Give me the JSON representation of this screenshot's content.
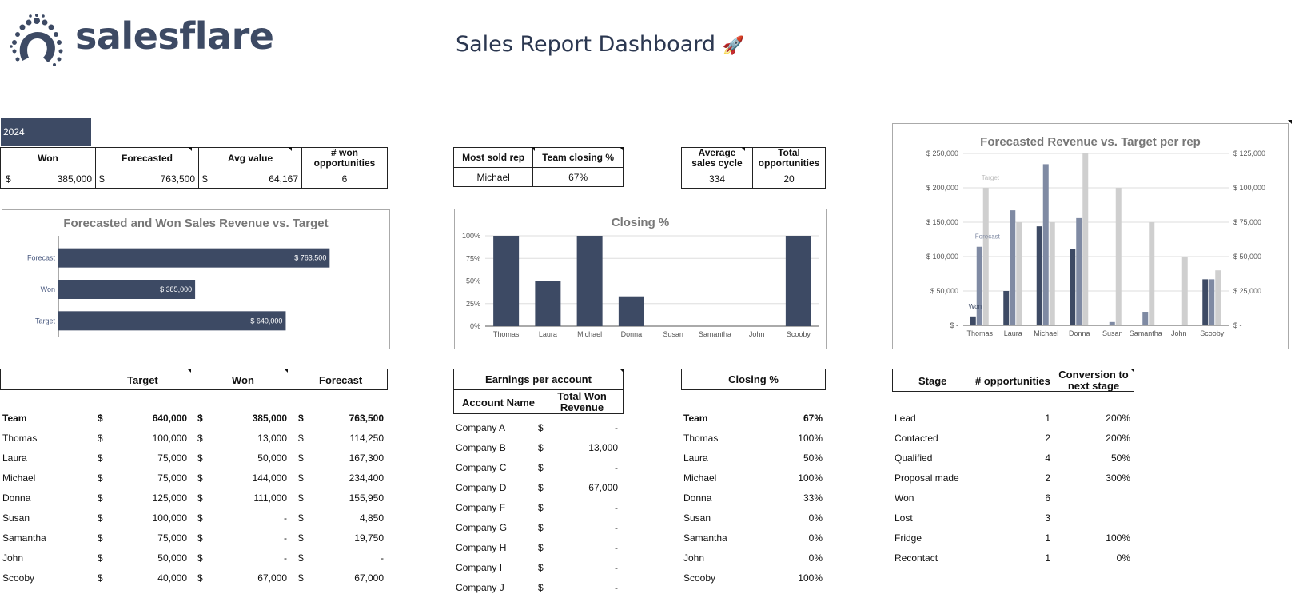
{
  "brand": {
    "name": "salesflare"
  },
  "page": {
    "title": "Sales Report Dashboard",
    "title_emoji": "🚀"
  },
  "year_label": "2024",
  "kpi_main": {
    "headers": [
      "Won",
      "Forecasted",
      "Avg value",
      "# won opportunities"
    ],
    "currency": "$",
    "values": [
      "385,000",
      "763,500",
      "64,167",
      "6"
    ]
  },
  "kpi_rep": {
    "headers": [
      "Most sold rep",
      "Team closing %"
    ],
    "values": [
      "Michael",
      "67%"
    ]
  },
  "kpi_cycle": {
    "headers": [
      "Average sales cycle",
      "Total opportunities"
    ],
    "values": [
      "334",
      "20"
    ]
  },
  "chart_data": [
    {
      "type": "bar",
      "orientation": "horizontal",
      "title": "Forecasted and Won Sales Revenue vs. Target",
      "categories": [
        "Forecast",
        "Won",
        "Target"
      ],
      "values": [
        763500,
        385000,
        640000
      ],
      "data_labels": [
        "$ 763,500",
        "$ 385,000",
        "$ 640,000"
      ],
      "xlim": [
        0,
        900000
      ],
      "color": "#3d4a64"
    },
    {
      "type": "bar",
      "title": "Closing %",
      "categories": [
        "Thomas",
        "Laura",
        "Michael",
        "Donna",
        "Susan",
        "Samantha",
        "John",
        "Scooby"
      ],
      "values": [
        100,
        50,
        100,
        33,
        0,
        0,
        0,
        100
      ],
      "ylim": [
        0,
        100
      ],
      "yticks": [
        "0%",
        "25%",
        "50%",
        "75%",
        "100%"
      ],
      "color": "#3d4a64",
      "grid": true
    },
    {
      "type": "bar",
      "title": "Forecasted Revenue vs. Target per rep",
      "categories": [
        "Thomas",
        "Laura",
        "Michael",
        "Donna",
        "Susan",
        "Samantha",
        "John",
        "Scooby"
      ],
      "series": [
        {
          "name": "Won",
          "values": [
            13000,
            50000,
            144000,
            111000,
            0,
            0,
            0,
            67000
          ],
          "color": "#3d4a64"
        },
        {
          "name": "Forecast",
          "values": [
            114250,
            167300,
            234400,
            155950,
            4850,
            19750,
            0,
            67000
          ],
          "color": "#7f8aa3"
        },
        {
          "name": "Target",
          "values": [
            100000,
            75000,
            75000,
            125000,
            100000,
            75000,
            50000,
            40000
          ],
          "color": "#cfcfcf",
          "axis": "right"
        }
      ],
      "ylim_left": [
        0,
        250000
      ],
      "ylim_right": [
        0,
        125000
      ],
      "yticks_left": [
        "$ -",
        "$ 50,000",
        "$ 100,000",
        "$ 150,000",
        "$ 200,000",
        "$ 250,000"
      ],
      "yticks_right": [
        "$ -",
        "$ 25,000",
        "$ 50,000",
        "$ 75,000",
        "$ 100,000",
        "$ 125,000"
      ]
    }
  ],
  "rep_table": {
    "headers": [
      "Target",
      "Won",
      "Forecast"
    ],
    "currency": "$",
    "rows": [
      {
        "name": "Team",
        "target": "640,000",
        "won": "385,000",
        "forecast": "763,500",
        "bold": true
      },
      {
        "name": "Thomas",
        "target": "100,000",
        "won": "13,000",
        "forecast": "114,250"
      },
      {
        "name": "Laura",
        "target": "75,000",
        "won": "50,000",
        "forecast": "167,300"
      },
      {
        "name": "Michael",
        "target": "75,000",
        "won": "144,000",
        "forecast": "234,400"
      },
      {
        "name": "Donna",
        "target": "125,000",
        "won": "111,000",
        "forecast": "155,950"
      },
      {
        "name": "Susan",
        "target": "100,000",
        "won": "-",
        "forecast": "4,850"
      },
      {
        "name": "Samantha",
        "target": "75,000",
        "won": "-",
        "forecast": "19,750"
      },
      {
        "name": "John",
        "target": "50,000",
        "won": "-",
        "forecast": "-"
      },
      {
        "name": "Scooby",
        "target": "40,000",
        "won": "67,000",
        "forecast": "67,000"
      }
    ]
  },
  "earnings_table": {
    "title": "Earnings per account",
    "headers": [
      "Account Name",
      "Total Won Revenue"
    ],
    "currency": "$",
    "rows": [
      {
        "name": "Company A",
        "value": "-"
      },
      {
        "name": "Company B",
        "value": "13,000"
      },
      {
        "name": "Company C",
        "value": "-"
      },
      {
        "name": "Company D",
        "value": "67,000"
      },
      {
        "name": "Company F",
        "value": "-"
      },
      {
        "name": "Company G",
        "value": "-"
      },
      {
        "name": "Company H",
        "value": "-"
      },
      {
        "name": "Company I",
        "value": "-"
      },
      {
        "name": "Company J",
        "value": "-"
      }
    ]
  },
  "closing_table": {
    "title": "Closing %",
    "rows": [
      {
        "name": "Team",
        "value": "67%",
        "bold": true
      },
      {
        "name": "Thomas",
        "value": "100%"
      },
      {
        "name": "Laura",
        "value": "50%"
      },
      {
        "name": "Michael",
        "value": "100%"
      },
      {
        "name": "Donna",
        "value": "33%"
      },
      {
        "name": "Susan",
        "value": "0%"
      },
      {
        "name": "Samantha",
        "value": "0%"
      },
      {
        "name": "John",
        "value": "0%"
      },
      {
        "name": "Scooby",
        "value": "100%"
      }
    ]
  },
  "stage_table": {
    "headers": [
      "Stage",
      "# opportunities",
      "Conversion to next stage"
    ],
    "rows": [
      {
        "stage": "Lead",
        "count": "1",
        "conv": "200%"
      },
      {
        "stage": "Contacted",
        "count": "2",
        "conv": "200%"
      },
      {
        "stage": "Qualified",
        "count": "4",
        "conv": "50%"
      },
      {
        "stage": "Proposal made",
        "count": "2",
        "conv": "300%"
      },
      {
        "stage": "Won",
        "count": "6",
        "conv": ""
      },
      {
        "stage": "Lost",
        "count": "3",
        "conv": ""
      },
      {
        "stage": "Fridge",
        "count": "1",
        "conv": "100%"
      },
      {
        "stage": "Recontact",
        "count": "1",
        "conv": "0%"
      }
    ]
  }
}
